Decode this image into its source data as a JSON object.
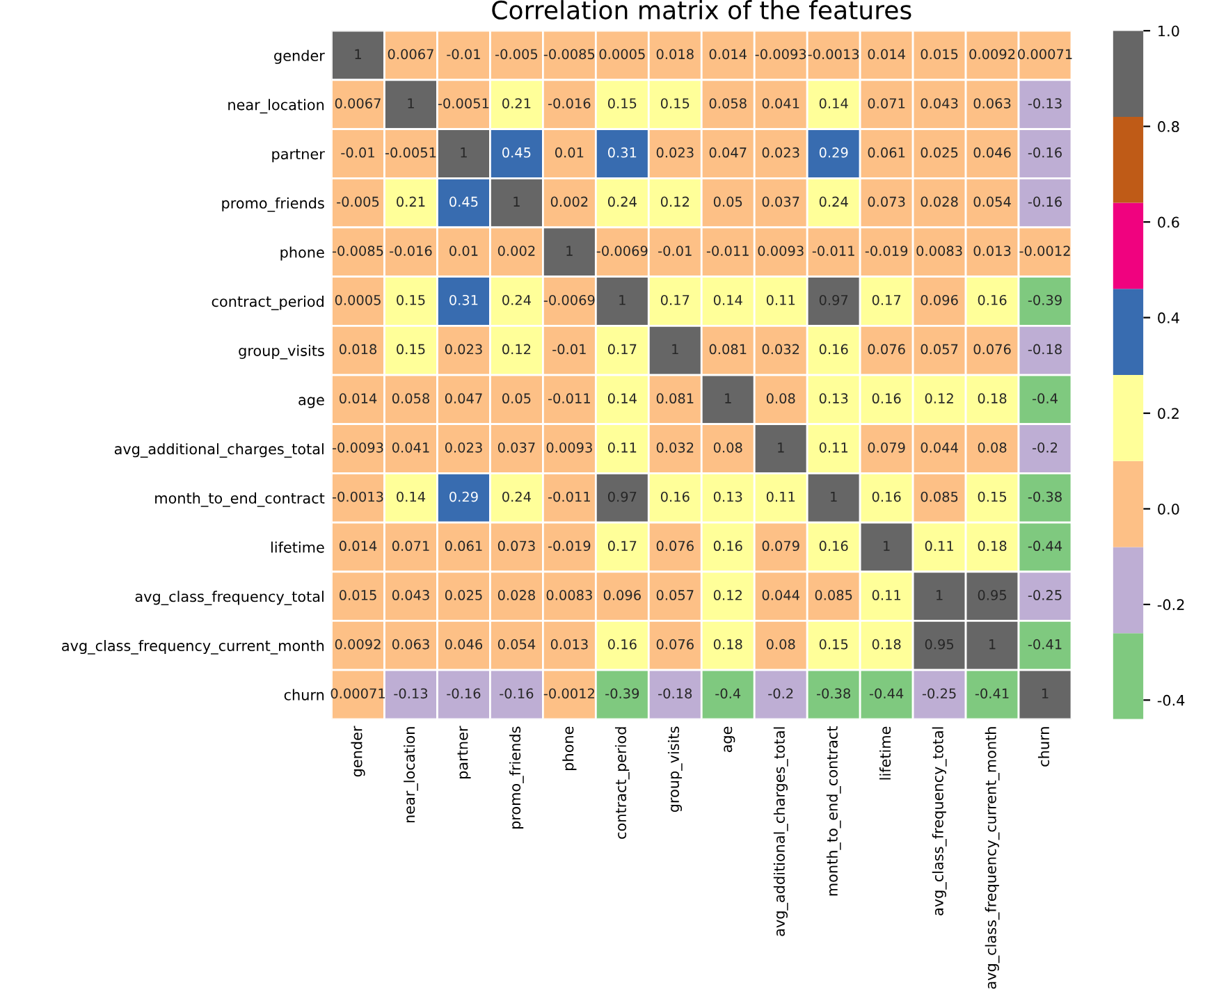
{
  "chart_data": {
    "type": "heatmap",
    "title": "Correlation matrix of the features",
    "categories": [
      "gender",
      "near_location",
      "partner",
      "promo_friends",
      "phone",
      "contract_period",
      "group_visits",
      "age",
      "avg_additional_charges_total",
      "month_to_end_contract",
      "lifetime",
      "avg_class_frequency_total",
      "avg_class_frequency_current_month",
      "churn"
    ],
    "y_categories": [
      "gender",
      "near_location",
      "partner",
      "promo_friends",
      "phone",
      "contract_period",
      "group_visits",
      "age",
      "avg_additional_charges_total",
      "month_to_end_contract",
      "lifetime",
      "avg_class_frequency_total",
      "avg_class_frequency_current_month",
      "churn"
    ],
    "cells": [
      [
        1,
        0.0067,
        -0.01,
        -0.005,
        -0.0085,
        0.0005,
        0.018,
        0.014,
        -0.0093,
        -0.0013,
        0.014,
        0.015,
        0.0092,
        0.00071
      ],
      [
        0.0067,
        1,
        -0.0051,
        0.21,
        -0.016,
        0.15,
        0.15,
        0.058,
        0.041,
        0.14,
        0.071,
        0.043,
        0.063,
        -0.13
      ],
      [
        -0.01,
        -0.0051,
        1,
        0.45,
        0.01,
        0.31,
        0.023,
        0.047,
        0.023,
        0.29,
        0.061,
        0.025,
        0.046,
        -0.16
      ],
      [
        -0.005,
        0.21,
        0.45,
        1,
        0.002,
        0.24,
        0.12,
        0.05,
        0.037,
        0.24,
        0.073,
        0.028,
        0.054,
        -0.16
      ],
      [
        -0.0085,
        -0.016,
        0.01,
        0.002,
        1,
        -0.0069,
        -0.01,
        -0.011,
        0.0093,
        -0.011,
        -0.019,
        0.0083,
        0.013,
        -0.0012
      ],
      [
        0.0005,
        0.15,
        0.31,
        0.24,
        -0.0069,
        1,
        0.17,
        0.14,
        0.11,
        0.97,
        0.17,
        0.096,
        0.16,
        -0.39
      ],
      [
        0.018,
        0.15,
        0.023,
        0.12,
        -0.01,
        0.17,
        1,
        0.081,
        0.032,
        0.16,
        0.076,
        0.057,
        0.076,
        -0.18
      ],
      [
        0.014,
        0.058,
        0.047,
        0.05,
        -0.011,
        0.14,
        0.081,
        1,
        0.08,
        0.13,
        0.16,
        0.12,
        0.18,
        -0.4
      ],
      [
        -0.0093,
        0.041,
        0.023,
        0.037,
        0.0093,
        0.11,
        0.032,
        0.08,
        1,
        0.11,
        0.079,
        0.044,
        0.08,
        -0.2
      ],
      [
        -0.0013,
        0.14,
        0.29,
        0.24,
        -0.011,
        0.97,
        0.16,
        0.13,
        0.11,
        1,
        0.16,
        0.085,
        0.15,
        -0.38
      ],
      [
        0.014,
        0.071,
        0.061,
        0.073,
        -0.019,
        0.17,
        0.076,
        0.16,
        0.079,
        0.16,
        1,
        0.11,
        0.18,
        -0.44
      ],
      [
        0.015,
        0.043,
        0.025,
        0.028,
        0.0083,
        0.096,
        0.057,
        0.12,
        0.044,
        0.085,
        0.11,
        1,
        0.95,
        -0.25
      ],
      [
        0.0092,
        0.063,
        0.046,
        0.054,
        0.013,
        0.16,
        0.076,
        0.18,
        0.08,
        0.15,
        0.18,
        0.95,
        1,
        -0.41
      ],
      [
        0.00071,
        -0.13,
        -0.16,
        -0.16,
        -0.0012,
        -0.39,
        -0.18,
        -0.4,
        -0.2,
        -0.38,
        -0.44,
        -0.25,
        -0.41,
        1
      ]
    ],
    "colors": [
      "#7fc97f",
      "#beaed4",
      "#fdc086",
      "#ffff99",
      "#386cb0",
      "#f0027f",
      "#bf5b17",
      "#666666"
    ],
    "clim": [
      -0.44,
      1
    ],
    "cticks": [
      {
        "value": -0.4,
        "label": "-0.4"
      },
      {
        "value": -0.2,
        "label": "-0.2"
      },
      {
        "value": 0,
        "label": "0.0"
      },
      {
        "value": 0.2,
        "label": "0.2"
      },
      {
        "value": 0.4,
        "label": "0.4"
      },
      {
        "value": 0.6,
        "label": "0.6"
      },
      {
        "value": 0.8,
        "label": "0.8"
      },
      {
        "value": 1,
        "label": "1.0"
      }
    ],
    "data_labels": true
  }
}
